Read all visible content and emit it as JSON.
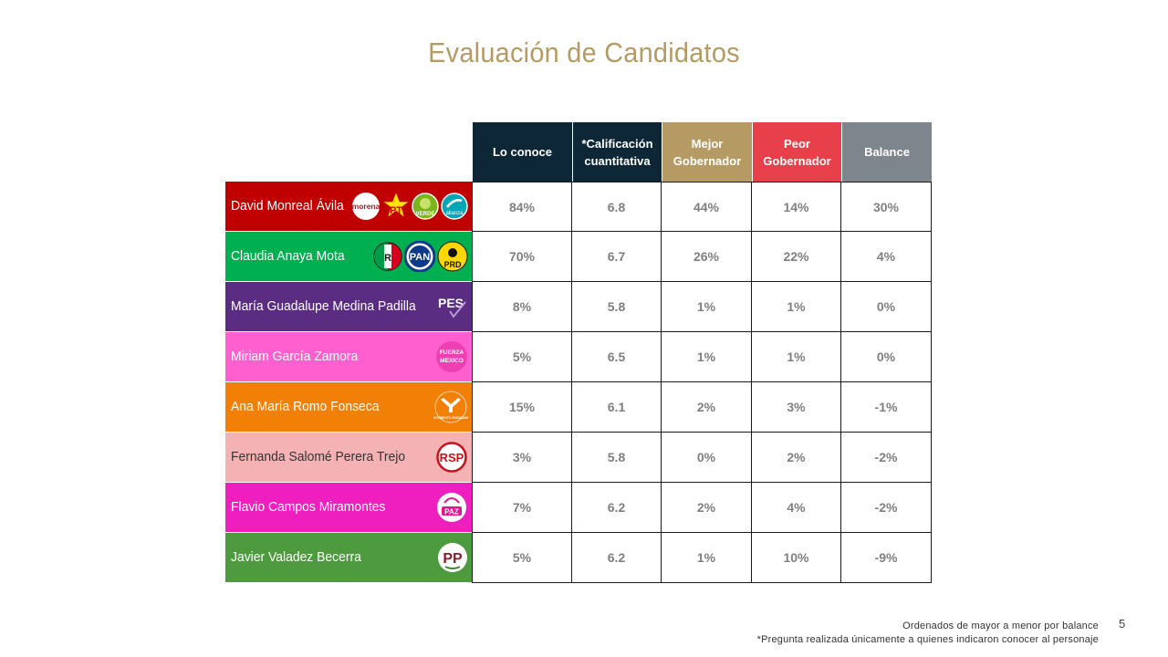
{
  "title": "Evaluación de Candidatos",
  "columns": [
    {
      "label": "Lo conoce",
      "bg": "#0d2737"
    },
    {
      "label": "*Calificación\ncuantitativa",
      "bg": "#0d2737"
    },
    {
      "label": "Mejor\nGobernador",
      "bg": "#b59b63"
    },
    {
      "label": "Peor\nGobernador",
      "bg": "#e8404a"
    },
    {
      "label": "Balance",
      "bg": "#7f858c"
    }
  ],
  "rows": [
    {
      "name": "David Monreal Ávila",
      "color": "#c00000",
      "logos": [
        "morena-logo",
        "pt-logo",
        "verde-logo",
        "nueva-alianza-logo"
      ],
      "values": [
        "84%",
        "6.8",
        "44%",
        "14%",
        "30%"
      ]
    },
    {
      "name": "Claudia Anaya Mota",
      "color": "#00b050",
      "logos": [
        "pri-logo",
        "pan-logo",
        "prd-logo"
      ],
      "values": [
        "70%",
        "6.7",
        "26%",
        "22%",
        "4%"
      ]
    },
    {
      "name": "María Guadalupe Medina Padilla",
      "color": "#5a2d82",
      "logos": [
        "pes-logo"
      ],
      "values": [
        "8%",
        "5.8",
        "1%",
        "1%",
        "0%"
      ]
    },
    {
      "name": "Miriam García Zamora",
      "color": "#ff5fcf",
      "logos": [
        "fuerza-mexico-logo"
      ],
      "values": [
        "5%",
        "6.5",
        "1%",
        "1%",
        "0%"
      ]
    },
    {
      "name": "Ana María Romo Fonseca",
      "color": "#f28007",
      "logos": [
        "movimiento-ciudadano-logo"
      ],
      "values": [
        "15%",
        "6.1",
        "2%",
        "3%",
        "-1%"
      ]
    },
    {
      "name": "Fernanda Salomé Perera Trejo",
      "color": "#f4b2b4",
      "textColor": "#333333",
      "logos": [
        "rsp-logo"
      ],
      "values": [
        "3%",
        "5.8",
        "0%",
        "2%",
        "-2%"
      ]
    },
    {
      "name": "Flavio Campos Miramontes",
      "color": "#ee1fbe",
      "logos": [
        "paz-logo"
      ],
      "values": [
        "7%",
        "6.2",
        "2%",
        "4%",
        "-2%"
      ]
    },
    {
      "name": "Javier Valadez Becerra",
      "color": "#4e9a3e",
      "logos": [
        "pp-logo"
      ],
      "values": [
        "5%",
        "6.2",
        "1%",
        "10%",
        "-9%"
      ]
    }
  ],
  "logo_text": {
    "morena": "morena",
    "pt": "PT",
    "verde": "VERDE",
    "nueva_alianza": "alianza",
    "pan": "PAN",
    "prd": "PRD",
    "pes": "PES",
    "fuerza_line1": "FUERZA",
    "fuerza_line2": "MEXICO",
    "mc": "MOVIMIENTO CIUDADANO",
    "rsp": "RSP",
    "paz": "PAZ",
    "pp": "PP"
  },
  "footnotes": {
    "line1": "Ordenados de mayor a menor por balance",
    "line2": "*Pregunta realizada únicamente a quienes indicaron conocer al personaje"
  },
  "page_number": "5"
}
